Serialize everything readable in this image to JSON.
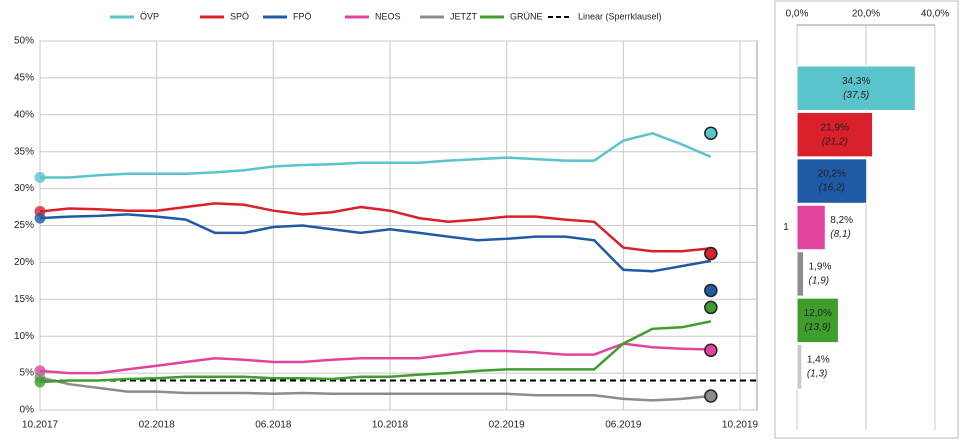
{
  "chart_data": [
    {
      "type": "line",
      "x": [
        "10.2017",
        "11.2017",
        "12.2017",
        "01.2018",
        "02.2018",
        "03.2018",
        "04.2018",
        "05.2018",
        "06.2018",
        "07.2018",
        "08.2018",
        "09.2018",
        "10.2018",
        "11.2018",
        "12.2018",
        "01.2019",
        "02.2019",
        "03.2019",
        "04.2019",
        "05.2019",
        "06.2019",
        "07.2019",
        "08.2019",
        "09.2019"
      ],
      "xlim": [
        "10.2017",
        "10.2019"
      ],
      "xticks": [
        "10.2017",
        "02.2018",
        "06.2018",
        "10.2018",
        "02.2019",
        "06.2019",
        "10.2019"
      ],
      "ylim": [
        0,
        50
      ],
      "yticks": [
        {
          "value": 0,
          "label": "0%"
        },
        {
          "value": 5,
          "label": "5%"
        },
        {
          "value": 10,
          "label": "10%"
        },
        {
          "value": 15,
          "label": "15%"
        },
        {
          "value": 20,
          "label": "20%"
        },
        {
          "value": 25,
          "label": "25%"
        },
        {
          "value": 30,
          "label": "30%"
        },
        {
          "value": 35,
          "label": "35%"
        },
        {
          "value": 40,
          "label": "40%"
        },
        {
          "value": 45,
          "label": "45%"
        },
        {
          "value": 50,
          "label": "50%"
        }
      ],
      "grid": true,
      "series": [
        {
          "name": "ÖVP",
          "color": "#5bc3cc",
          "values": [
            31.5,
            31.5,
            31.8,
            32,
            32,
            32,
            32.2,
            32.5,
            33,
            33.2,
            33.3,
            33.5,
            33.5,
            33.5,
            33.8,
            34,
            34.2,
            34,
            33.8,
            33.8,
            36.5,
            37.5,
            36,
            34.3
          ],
          "result": 37.5
        },
        {
          "name": "SPÖ",
          "color": "#d9202b",
          "values": [
            26.9,
            27.3,
            27.2,
            27,
            27,
            27.5,
            28,
            27.8,
            27,
            26.5,
            26.8,
            27.5,
            27,
            26,
            25.5,
            25.8,
            26.2,
            26.2,
            25.8,
            25.5,
            22,
            21.5,
            21.5,
            21.9
          ],
          "result": 21.2
        },
        {
          "name": "FPÖ",
          "color": "#1f5aa6",
          "values": [
            26,
            26.2,
            26.3,
            26.5,
            26.2,
            25.8,
            24,
            24,
            24.8,
            25,
            24.5,
            24,
            24.5,
            24,
            23.5,
            23,
            23.2,
            23.5,
            23.5,
            23,
            19,
            18.8,
            19.5,
            20.2
          ],
          "result": 16.2
        },
        {
          "name": "NEOS",
          "color": "#e2439c",
          "values": [
            5.3,
            5,
            5,
            5.5,
            6,
            6.5,
            7,
            6.8,
            6.5,
            6.5,
            6.8,
            7,
            7,
            7,
            7.5,
            8,
            8,
            7.8,
            7.5,
            7.5,
            9,
            8.5,
            8.3,
            8.2
          ],
          "result": 8.1
        },
        {
          "name": "JETZT",
          "color": "#8c8c8c",
          "values": [
            4.4,
            3.5,
            3,
            2.5,
            2.5,
            2.3,
            2.3,
            2.3,
            2.2,
            2.3,
            2.2,
            2.2,
            2.2,
            2.2,
            2.2,
            2.2,
            2.2,
            2,
            2,
            2,
            1.5,
            1.3,
            1.5,
            1.9
          ],
          "result": 1.9
        },
        {
          "name": "GRÜNE",
          "color": "#3d9e2c",
          "values": [
            3.8,
            4,
            4,
            4.2,
            4.3,
            4.5,
            4.5,
            4.5,
            4.3,
            4.3,
            4.2,
            4.5,
            4.5,
            4.8,
            5,
            5.3,
            5.5,
            5.5,
            5.5,
            5.5,
            9,
            11,
            11.2,
            12
          ],
          "result": 13.9
        }
      ],
      "threshold": {
        "name": "Linear (Sperrklausel)",
        "value": 4,
        "color": "#000000"
      }
    },
    {
      "type": "bar",
      "orientation": "horizontal",
      "categories": [
        "1"
      ],
      "xlim": [
        0,
        40
      ],
      "xticks": [
        {
          "value": 0,
          "label": "0,0%"
        },
        {
          "value": 20,
          "label": "20,0%"
        },
        {
          "value": 40,
          "label": "40,0%"
        }
      ],
      "series": [
        {
          "color": "#5bc3cc",
          "values": [
            34.3
          ],
          "value_labels": [
            "34,3%"
          ],
          "results": [
            37.5
          ],
          "result_labels": [
            "(37,5)"
          ]
        },
        {
          "color": "#d9202b",
          "values": [
            21.9
          ],
          "value_labels": [
            "21,9%"
          ],
          "results": [
            21.2
          ],
          "result_labels": [
            "(21,2)"
          ]
        },
        {
          "color": "#1f5aa6",
          "values": [
            20.2
          ],
          "value_labels": [
            "20,2%"
          ],
          "results": [
            16.2
          ],
          "result_labels": [
            "(16,2)"
          ]
        },
        {
          "color": "#e2439c",
          "values": [
            8.2
          ],
          "value_labels": [
            "8,2%"
          ],
          "results": [
            8.1
          ],
          "result_labels": [
            "(8,1)"
          ]
        },
        {
          "color": "#8c8c8c",
          "values": [
            1.9
          ],
          "value_labels": [
            "1,9%"
          ],
          "results": [
            1.9
          ],
          "result_labels": [
            "(1,9)"
          ]
        },
        {
          "color": "#3d9e2c",
          "values": [
            12.0
          ],
          "value_labels": [
            "12,0%"
          ],
          "results": [
            13.9
          ],
          "result_labels": [
            "(13,9)"
          ]
        },
        {
          "color": "#c8c8c8",
          "values": [
            1.4
          ],
          "value_labels": [
            "1,4%"
          ],
          "results": [
            1.3
          ],
          "result_labels": [
            "(1,3)"
          ]
        }
      ]
    }
  ]
}
